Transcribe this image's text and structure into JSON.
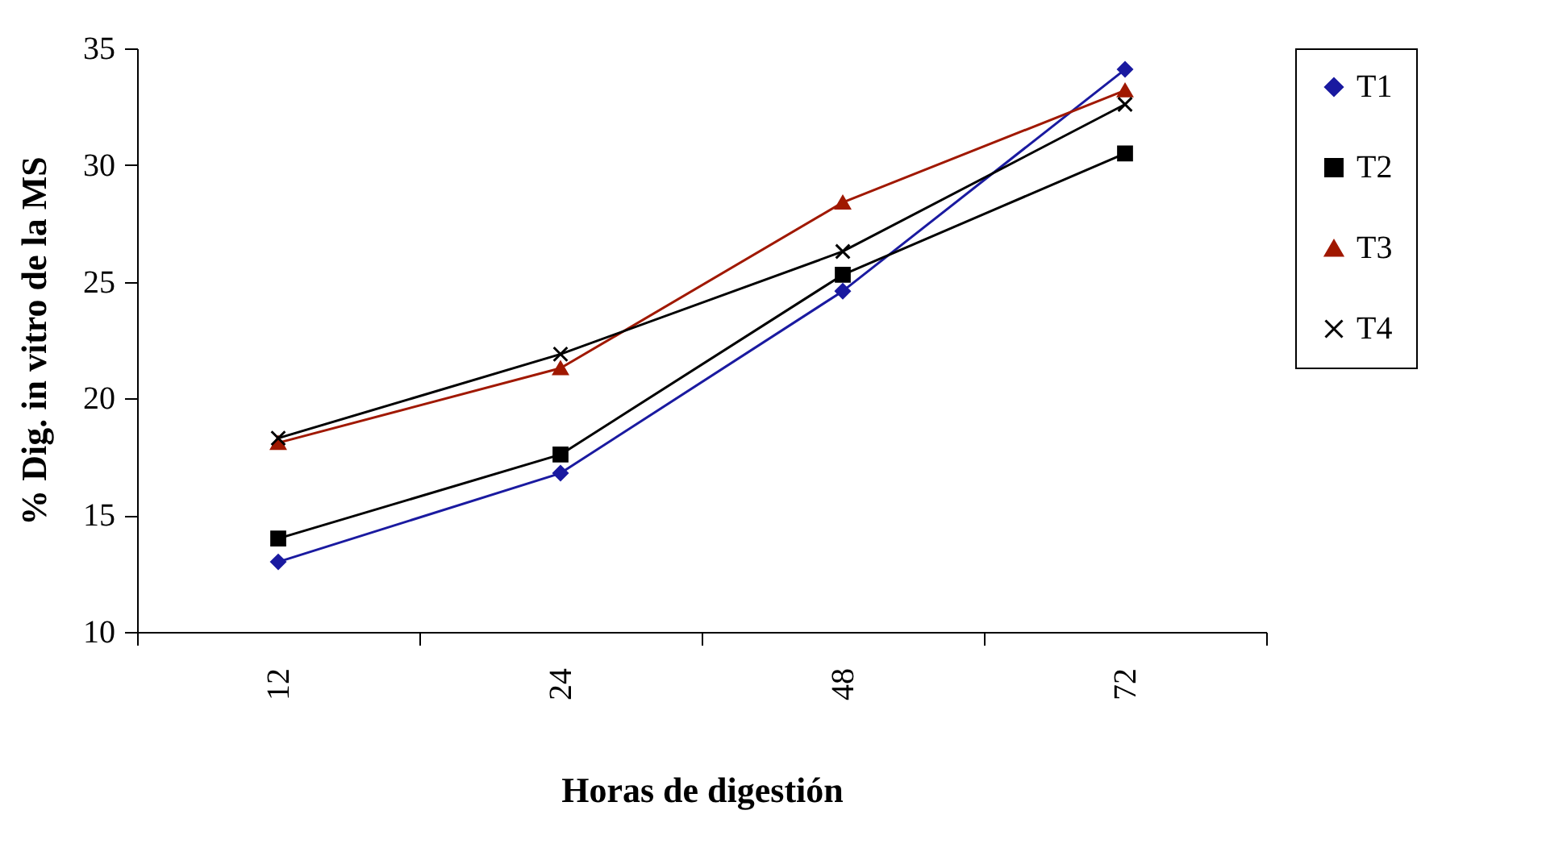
{
  "chart_data": {
    "type": "line",
    "xlabel": "Horas de digestión",
    "ylabel": "% Dig. in vitro de la MS",
    "categories": [
      "12",
      "24",
      "48",
      "72"
    ],
    "series": [
      {
        "name": "T1",
        "color": "#1a1aa0",
        "marker": "diamond",
        "values": [
          13.0,
          16.8,
          24.6,
          34.1
        ]
      },
      {
        "name": "T2",
        "color": "#000000",
        "marker": "square",
        "values": [
          14.0,
          17.6,
          25.3,
          30.5
        ]
      },
      {
        "name": "T3",
        "color": "#a01800",
        "marker": "triangle",
        "values": [
          18.1,
          21.3,
          28.4,
          33.2
        ]
      },
      {
        "name": "T4",
        "color": "#000000",
        "marker": "cross",
        "values": [
          18.3,
          21.9,
          26.3,
          32.6
        ]
      }
    ],
    "ylim": [
      10,
      35
    ],
    "yticks": [
      10,
      15,
      20,
      25,
      30,
      35
    ],
    "grid": false,
    "legend": "right",
    "line_style": "solid"
  }
}
